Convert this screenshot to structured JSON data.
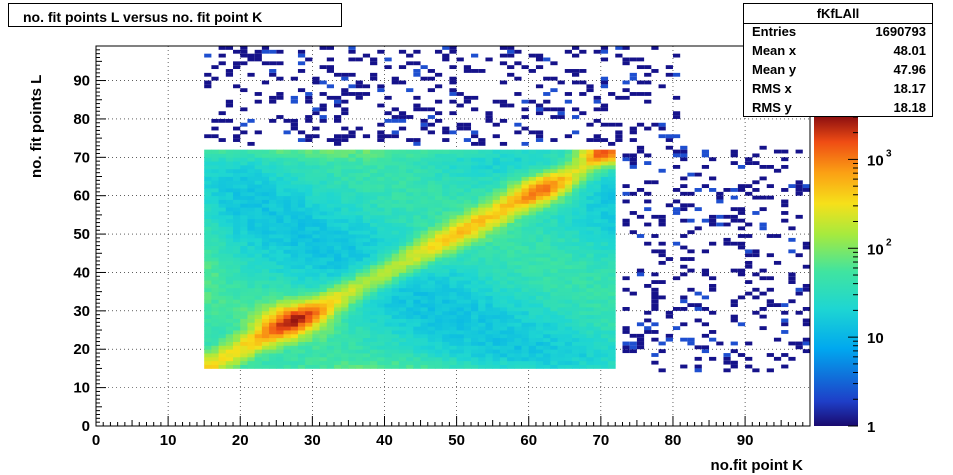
{
  "title": "no. fit points L versus no. fit point K",
  "stats": {
    "name": "fKfLAll",
    "rows": [
      {
        "label": "Entries",
        "value": "1690793"
      },
      {
        "label": "Mean x",
        "value": "48.01"
      },
      {
        "label": "Mean y",
        "value": "47.96"
      },
      {
        "label": "RMS x",
        "value": "18.17"
      },
      {
        "label": "RMS y",
        "value": "18.18"
      }
    ]
  },
  "chart_data": {
    "type": "heatmap",
    "xlabel": "no.fit point K",
    "ylabel": "no. fit points  L",
    "xlim": [
      0,
      99
    ],
    "ylim": [
      0,
      99
    ],
    "x_ticks": [
      "0",
      "10",
      "20",
      "30",
      "40",
      "50",
      "60",
      "70",
      "80",
      "90"
    ],
    "y_ticks": [
      "0",
      "10",
      "20",
      "30",
      "40",
      "50",
      "60",
      "70",
      "80",
      "90"
    ],
    "colorbar": {
      "scale": "log",
      "range": [
        1,
        3000
      ],
      "ticks": [
        "1",
        "10",
        "10",
        "10"
      ],
      "tick_exponents": [
        "",
        "",
        "2",
        "3"
      ]
    },
    "grid": true,
    "dense_region": {
      "x": [
        15,
        72
      ],
      "y": [
        15,
        72
      ]
    },
    "hot_spots": [
      {
        "x": 27,
        "y": 28,
        "level": "~1500"
      },
      {
        "x": 62,
        "y": 62,
        "level": "~2000"
      },
      {
        "x": 70,
        "y": 71,
        "level": "~3000"
      }
    ],
    "sparse_region_note": "isolated low-count bins (count ~1-3) outside the dense square"
  }
}
